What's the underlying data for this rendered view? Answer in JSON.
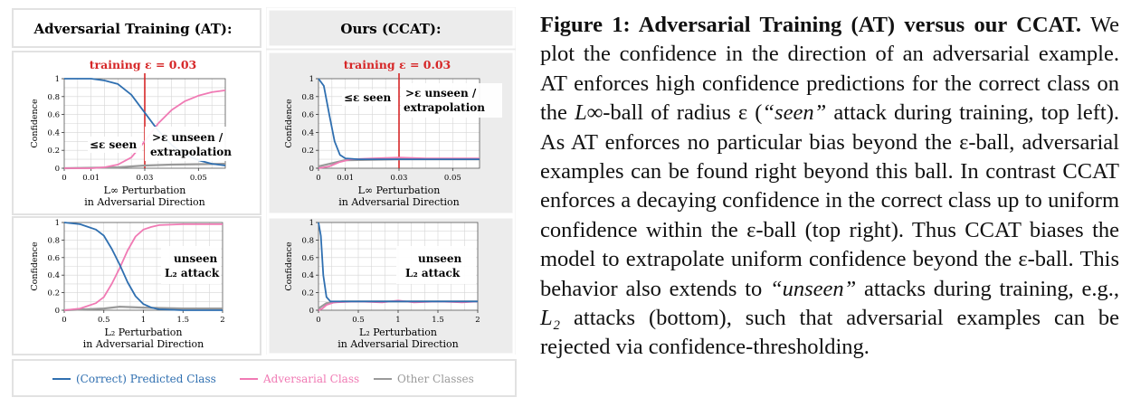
{
  "figure": {
    "left_header": "Adversarial Training (AT):",
    "right_header": "Ours (CCAT):",
    "training_label": "training ε = 0.03",
    "ylabel": "Confidence",
    "xlabel_linf_line1": "L∞ Perturbation",
    "xlabel_l2_line1": "L₂ Perturbation",
    "xlabel_line2": "in Adversarial Direction",
    "ann_seen": "≤ε seen",
    "ann_unseen_line1": ">ε unseen /",
    "ann_unseen_line2": "extrapolation",
    "ann_l2_line1": "unseen",
    "ann_l2_line2": "L₂ attack",
    "legend": [
      "(Correct) Predicted Class",
      "Adversarial Class",
      "Other Classes"
    ],
    "colors": {
      "predicted": "#2f6fb0",
      "adversarial": "#f07ab4",
      "other": "#9a9a9a",
      "training": "#d62728",
      "panel_bg": "#ececec"
    }
  },
  "chart_data": [
    {
      "type": "line",
      "panel": "AT, L-infinity",
      "xlim": [
        0,
        0.06
      ],
      "ylim": [
        0,
        1
      ],
      "xticks": [
        "0",
        "0.01",
        "0.03",
        "0.05"
      ],
      "xtick_values": [
        0,
        0.01,
        0.03,
        0.05
      ],
      "yticks": [
        "0",
        "0.2",
        "0.4",
        "0.6",
        "0.8",
        "1"
      ],
      "training_epsilon": 0.03,
      "series": [
        {
          "name": "(Correct) Predicted Class",
          "x": [
            0,
            0.01,
            0.015,
            0.02,
            0.025,
            0.03,
            0.035,
            0.04,
            0.045,
            0.05,
            0.055,
            0.06
          ],
          "y": [
            1,
            1,
            0.98,
            0.94,
            0.82,
            0.62,
            0.42,
            0.26,
            0.15,
            0.09,
            0.05,
            0.03
          ]
        },
        {
          "name": "Adversarial Class",
          "x": [
            0,
            0.01,
            0.015,
            0.02,
            0.025,
            0.03,
            0.035,
            0.04,
            0.045,
            0.05,
            0.055,
            0.06
          ],
          "y": [
            0,
            0,
            0.01,
            0.04,
            0.12,
            0.3,
            0.5,
            0.65,
            0.75,
            0.81,
            0.85,
            0.87
          ]
        },
        {
          "name": "Other Classes",
          "x": [
            0,
            0.02,
            0.03,
            0.04,
            0.06
          ],
          "y": [
            0,
            0.01,
            0.03,
            0.04,
            0.05
          ]
        }
      ]
    },
    {
      "type": "line",
      "panel": "CCAT, L-infinity",
      "xlim": [
        0,
        0.06
      ],
      "ylim": [
        0,
        1
      ],
      "xticks": [
        "0",
        "0.01",
        "0.03",
        "0.05"
      ],
      "xtick_values": [
        0,
        0.01,
        0.03,
        0.05
      ],
      "yticks": [
        "0",
        "0.2",
        "0.4",
        "0.6",
        "0.8",
        "1"
      ],
      "training_epsilon": 0.03,
      "series": [
        {
          "name": "(Correct) Predicted Class",
          "x": [
            0,
            0.002,
            0.004,
            0.006,
            0.008,
            0.01,
            0.015,
            0.03,
            0.06
          ],
          "y": [
            1,
            0.92,
            0.6,
            0.3,
            0.15,
            0.11,
            0.1,
            0.1,
            0.1
          ]
        },
        {
          "name": "Adversarial Class",
          "x": [
            0,
            0.004,
            0.008,
            0.012,
            0.02,
            0.03,
            0.04,
            0.06
          ],
          "y": [
            0,
            0.02,
            0.07,
            0.1,
            0.11,
            0.12,
            0.11,
            0.11
          ]
        },
        {
          "name": "Other Classes",
          "x": [
            0,
            0.01,
            0.03,
            0.06
          ],
          "y": [
            0.02,
            0.09,
            0.1,
            0.1
          ]
        }
      ]
    },
    {
      "type": "line",
      "panel": "AT, L2",
      "xlim": [
        0,
        2
      ],
      "ylim": [
        0,
        1
      ],
      "xticks": [
        "0",
        "0.5",
        "1",
        "1.5",
        "2"
      ],
      "xtick_values": [
        0,
        0.5,
        1,
        1.5,
        2
      ],
      "yticks": [
        "0",
        "0.2",
        "0.4",
        "0.6",
        "0.8",
        "1"
      ],
      "series": [
        {
          "name": "(Correct) Predicted Class",
          "x": [
            0,
            0.2,
            0.4,
            0.5,
            0.6,
            0.7,
            0.8,
            0.9,
            1.0,
            1.1,
            1.2,
            1.5,
            2
          ],
          "y": [
            1,
            0.98,
            0.92,
            0.85,
            0.7,
            0.52,
            0.32,
            0.16,
            0.07,
            0.03,
            0.01,
            0,
            0
          ]
        },
        {
          "name": "Adversarial Class",
          "x": [
            0,
            0.2,
            0.4,
            0.5,
            0.6,
            0.7,
            0.8,
            0.9,
            1.0,
            1.1,
            1.2,
            1.5,
            2
          ],
          "y": [
            0,
            0.02,
            0.08,
            0.15,
            0.3,
            0.48,
            0.68,
            0.84,
            0.92,
            0.95,
            0.97,
            0.98,
            0.98
          ]
        },
        {
          "name": "Other Classes",
          "x": [
            0,
            0.5,
            0.7,
            1,
            1.5,
            2
          ],
          "y": [
            0,
            0.02,
            0.04,
            0.03,
            0.02,
            0.02
          ]
        }
      ]
    },
    {
      "type": "line",
      "panel": "CCAT, L2",
      "xlim": [
        0,
        2
      ],
      "ylim": [
        0,
        1
      ],
      "xticks": [
        "0",
        "0.5",
        "1",
        "1.5",
        "2"
      ],
      "xtick_values": [
        0,
        0.5,
        1,
        1.5,
        2
      ],
      "yticks": [
        "0",
        "0.2",
        "0.4",
        "0.6",
        "0.8",
        "1"
      ],
      "series": [
        {
          "name": "(Correct) Predicted Class",
          "x": [
            0,
            0.03,
            0.06,
            0.1,
            0.15,
            0.2,
            0.5,
            1,
            1.5,
            2
          ],
          "y": [
            1,
            0.85,
            0.4,
            0.15,
            0.1,
            0.1,
            0.1,
            0.1,
            0.1,
            0.1
          ]
        },
        {
          "name": "Adversarial Class",
          "x": [
            0,
            0.05,
            0.1,
            0.2,
            0.5,
            0.8,
            1,
            1.2,
            1.5,
            1.8,
            2
          ],
          "y": [
            0,
            0.02,
            0.06,
            0.09,
            0.1,
            0.09,
            0.11,
            0.09,
            0.1,
            0.09,
            0.1
          ]
        },
        {
          "name": "Other Classes",
          "x": [
            0,
            0.1,
            0.3,
            2
          ],
          "y": [
            0.02,
            0.08,
            0.1,
            0.1
          ]
        }
      ]
    }
  ],
  "caption": {
    "title": "Figure 1: Adversarial Training (AT) versus our CCAT.",
    "s1": " We plot the confidence in the direction of an adversarial example. AT enforces high confidence predictions for the correct class on the ",
    "linf_ball": "L∞",
    "s2": "-ball of radius ε (",
    "seen": "“seen”",
    "s3": " attack during training, top left). As AT enforces no particular bias beyond the ε-ball, adversarial examples can be found right beyond this ball.  In contrast CCAT enforces a decaying confidence in the correct class up to uniform confidence within the ε-ball (top right). Thus CCAT biases the model to extrapolate uniform confidence beyond the ε-ball. This behavior also extends to ",
    "unseen": "“unseen”",
    "s4": " attacks during training, e.g., ",
    "l2": "L₂",
    "s5": " attacks (bottom), such that adversarial examples can be rejected via confidence-thresholding."
  }
}
